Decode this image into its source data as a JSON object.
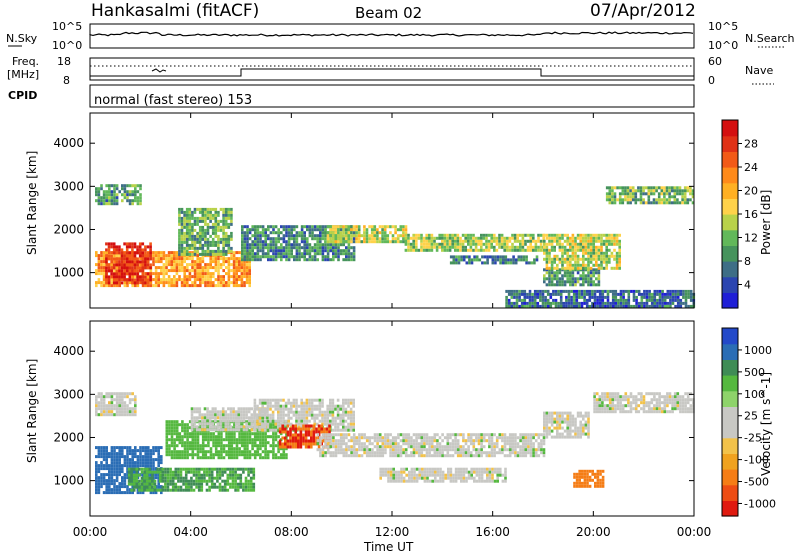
{
  "header": {
    "station": "Hankasalmi (fitACF)",
    "beam": "Beam 02",
    "date": "07/Apr/2012"
  },
  "noise_panel": {
    "left_label": "N.Sky",
    "left_top_tick": "10^5",
    "left_bottom_tick": "10^0",
    "right_label": "N.Search",
    "right_top_tick": "10^5",
    "right_bottom_tick": "10^0"
  },
  "freq_panel": {
    "left_label_line1": "Freq.",
    "left_label_line2": "[MHz]",
    "left_top_tick": "18",
    "left_bottom_tick": "8",
    "right_label": "Nave",
    "right_top_tick": "60",
    "right_bottom_tick": "0"
  },
  "cpid_panel": {
    "label": "CPID",
    "program": "normal (fast stereo) 153"
  },
  "chart_data": [
    {
      "type": "heatmap",
      "title": "",
      "xlabel": "Time UT",
      "ylabel": "Slant Range [km]",
      "x_ticks": [
        "00:00",
        "04:00",
        "08:00",
        "12:00",
        "16:00",
        "20:00",
        "00:00"
      ],
      "y_ticks": [
        "1000",
        "2000",
        "3000",
        "4000"
      ],
      "xlim_hours": [
        0,
        24
      ],
      "ylim_km": [
        180,
        4700
      ],
      "colorbar": {
        "label": "Power [dB]",
        "ticks": [
          "4",
          "8",
          "12",
          "16",
          "20",
          "24",
          "28"
        ],
        "range": [
          0,
          30
        ],
        "colors": [
          "#1f1fd6",
          "#2b45b0",
          "#3e6e86",
          "#46935c",
          "#62b85a",
          "#b9d24a",
          "#ffd24a",
          "#ffb023",
          "#ff8a1a",
          "#f25a17",
          "#e03116",
          "#d40f10"
        ]
      },
      "regions": [
        {
          "t0": 0.2,
          "t1": 6.3,
          "r0": 700,
          "r1": 1500,
          "value": 20
        },
        {
          "t0": 0.6,
          "t1": 2.4,
          "r0": 750,
          "r1": 1700,
          "value": 27
        },
        {
          "t0": 3.5,
          "t1": 5.6,
          "r0": 1400,
          "r1": 2500,
          "value": 10
        },
        {
          "t0": 0.2,
          "t1": 2.0,
          "r0": 2600,
          "r1": 3050,
          "value": 9
        },
        {
          "t0": 6.0,
          "t1": 10.5,
          "r0": 1300,
          "r1": 2100,
          "value": 8
        },
        {
          "t0": 9.3,
          "t1": 12.6,
          "r0": 1700,
          "r1": 2100,
          "value": 14
        },
        {
          "t0": 12.5,
          "t1": 18.0,
          "r0": 1500,
          "r1": 1900,
          "value": 13
        },
        {
          "t0": 14.3,
          "t1": 17.8,
          "r0": 1200,
          "r1": 1400,
          "value": 7
        },
        {
          "t0": 18.0,
          "t1": 20.2,
          "r0": 700,
          "r1": 1100,
          "value": 9
        },
        {
          "t0": 18.0,
          "t1": 21.0,
          "r0": 1100,
          "r1": 1900,
          "value": 14
        },
        {
          "t0": 20.5,
          "t1": 24.0,
          "r0": 2600,
          "r1": 3000,
          "value": 11
        },
        {
          "t0": 16.5,
          "t1": 24.0,
          "r0": 250,
          "r1": 600,
          "value": 6
        }
      ]
    },
    {
      "type": "heatmap",
      "title": "",
      "xlabel": "Time UT",
      "ylabel": "Slant Range [km]",
      "x_ticks": [
        "00:00",
        "04:00",
        "08:00",
        "12:00",
        "16:00",
        "20:00",
        "00:00"
      ],
      "y_ticks": [
        "1000",
        "2000",
        "3000",
        "4000"
      ],
      "xlim_hours": [
        0,
        24
      ],
      "ylim_km": [
        180,
        4700
      ],
      "colorbar": {
        "label": "Velocity [m s^-1]",
        "ticks": [
          "1000",
          "500",
          "100",
          "25",
          "-25",
          "-100",
          "-500",
          "-1000"
        ],
        "colors": [
          "#2349c9",
          "#2a6db5",
          "#3f8c55",
          "#55b83f",
          "#8ed36a",
          "#c8c8c4",
          "#c8c8c4",
          "#f2c24a",
          "#f0a21f",
          "#f57d16",
          "#ee4d14",
          "#e01a10"
        ]
      },
      "regions": [
        {
          "t0": 0.2,
          "t1": 2.8,
          "r0": 700,
          "r1": 1800,
          "value": 500
        },
        {
          "t0": 1.5,
          "t1": 6.5,
          "r0": 800,
          "r1": 1300,
          "value": 100
        },
        {
          "t0": 3.0,
          "t1": 7.8,
          "r0": 1500,
          "r1": 2400,
          "value": 60
        },
        {
          "t0": 0.2,
          "t1": 1.8,
          "r0": 2500,
          "r1": 3050,
          "value": 0
        },
        {
          "t0": 4.0,
          "t1": 7.0,
          "r0": 2200,
          "r1": 2700,
          "value": 0
        },
        {
          "t0": 6.5,
          "t1": 10.5,
          "r0": 2200,
          "r1": 2900,
          "value": 0
        },
        {
          "t0": 7.5,
          "t1": 9.5,
          "r0": 1800,
          "r1": 2300,
          "value": -500
        },
        {
          "t0": 9.0,
          "t1": 18.0,
          "r0": 1600,
          "r1": 2100,
          "value": 0
        },
        {
          "t0": 11.5,
          "t1": 16.5,
          "r0": 1000,
          "r1": 1300,
          "value": 0
        },
        {
          "t0": 19.2,
          "t1": 20.4,
          "r0": 850,
          "r1": 1250,
          "value": -300
        },
        {
          "t0": 20.0,
          "t1": 24.0,
          "r0": 2600,
          "r1": 3050,
          "value": 0
        },
        {
          "t0": 18.0,
          "t1": 19.8,
          "r0": 2000,
          "r1": 2600,
          "value": 0
        }
      ]
    }
  ]
}
